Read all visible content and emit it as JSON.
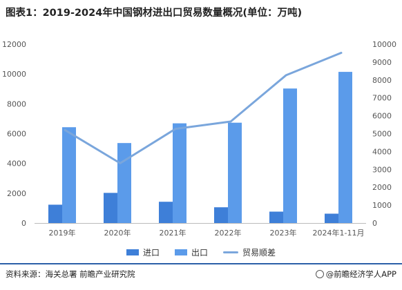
{
  "title": "图表1：2019-2024年中国钢材进出口贸易数量概况(单位：万吨)",
  "chart_data": {
    "type": "bar",
    "categories": [
      "2019年",
      "2020年",
      "2021年",
      "2022年",
      "2023年",
      "2024年1-11月"
    ],
    "series": [
      {
        "name": "进口",
        "kind": "bar",
        "axis": "left",
        "color": "#3e7fd8",
        "values": [
          1230,
          2023,
          1427,
          1057,
          765,
          627
        ]
      },
      {
        "name": "出口",
        "kind": "bar",
        "axis": "left",
        "color": "#5b9bea",
        "values": [
          6429,
          5367,
          6690,
          6732,
          9026,
          10143
        ]
      },
      {
        "name": "贸易顺差",
        "kind": "line",
        "axis": "right",
        "color": "#7aa6dc",
        "values": [
          5199,
          3344,
          5263,
          5675,
          8261,
          9516
        ]
      }
    ],
    "y_left": {
      "min": 0,
      "max": 12000,
      "ticks": [
        0,
        2000,
        4000,
        6000,
        8000,
        10000,
        12000
      ]
    },
    "y_right": {
      "min": 0,
      "max": 10000,
      "ticks": [
        0,
        1000,
        2000,
        3000,
        4000,
        5000,
        6000,
        7000,
        8000,
        9000,
        10000
      ]
    },
    "legend_position": "bottom",
    "grid": false
  },
  "source": "资料来源：海关总署  前瞻产业研究院",
  "brand": "@前瞻经济学人APP"
}
